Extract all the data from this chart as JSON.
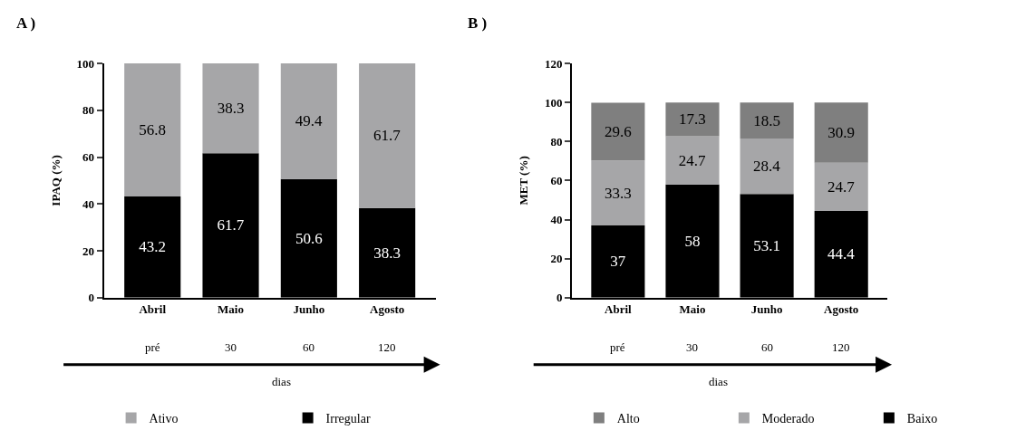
{
  "chart_data": [
    {
      "type": "bar",
      "title": "A )",
      "ylabel": "IPAQ (%)",
      "categories": [
        "Abril",
        "Maio",
        "Junho",
        "Agosto"
      ],
      "stacked": true,
      "data_labels": true,
      "ylim": [
        0,
        100
      ],
      "yticks": [
        0,
        20,
        40,
        60,
        80,
        100
      ],
      "legend": "bottom",
      "series": [
        {
          "name": "Irregular",
          "color": "#000000",
          "values": [
            43.2,
            61.7,
            50.6,
            38.3
          ]
        },
        {
          "name": "Ativo",
          "color": "#a6a6a8",
          "values": [
            56.8,
            38.3,
            49.4,
            61.7
          ]
        }
      ],
      "annotations": [
        "pré",
        "30",
        "60",
        "120",
        "dias"
      ]
    },
    {
      "type": "bar",
      "title": "B )",
      "ylabel": "MET (%)",
      "categories": [
        "Abril",
        "Maio",
        "Junho",
        "Agosto"
      ],
      "stacked": true,
      "data_labels": true,
      "ylim": [
        0,
        120
      ],
      "yticks": [
        0,
        20,
        40,
        60,
        80,
        100,
        120
      ],
      "legend": "bottom",
      "series": [
        {
          "name": "Baixo",
          "color": "#000000",
          "values": [
            37,
            58,
            53.1,
            44.4
          ]
        },
        {
          "name": "Moderado",
          "color": "#a6a6a8",
          "values": [
            33.3,
            24.7,
            28.4,
            24.7
          ]
        },
        {
          "name": "Alto",
          "color": "#7f7f7f",
          "values": [
            29.6,
            17.3,
            18.5,
            30.9
          ]
        }
      ],
      "annotations": [
        "pré",
        "30",
        "60",
        "120",
        "dias"
      ]
    }
  ]
}
